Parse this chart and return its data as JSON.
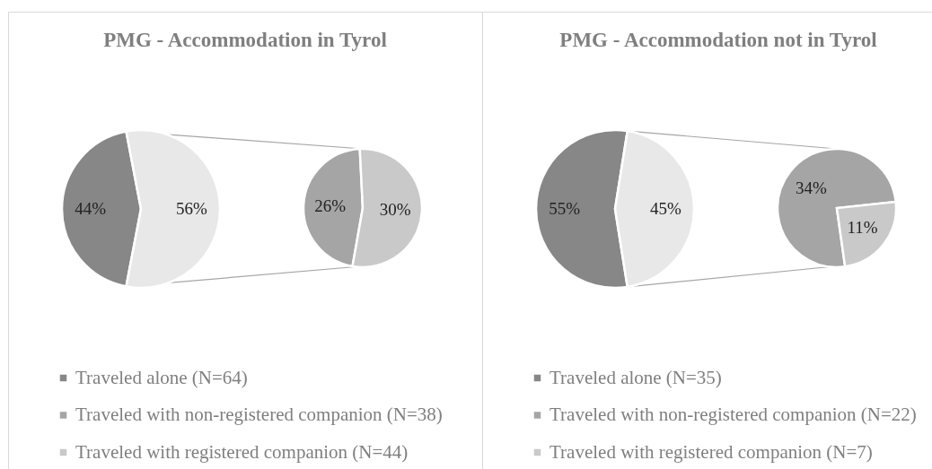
{
  "chart_data": [
    {
      "type": "pie",
      "title": "PMG - Accommodation in Tyrol",
      "categories": [
        "Traveled alone (N=64)",
        null,
        "Traveled with non-registered companion (N=38)",
        "Traveled with registered companion (N=44)"
      ],
      "colors": [
        "#878787",
        "#e8e8e8",
        "#a5a5a5",
        "#c9c9c9"
      ],
      "series": [
        {
          "values": [
            44,
            56,
            null,
            null
          ],
          "value_labels": [
            "44%",
            "56%",
            null,
            null
          ]
        },
        {
          "values": [
            null,
            null,
            26,
            30
          ],
          "value_labels": [
            null,
            null,
            "26%",
            "30%"
          ]
        }
      ],
      "legend": "bottom left"
    },
    {
      "type": "pie",
      "title": "PMG - Accommodation not in Tyrol",
      "categories": [
        "Traveled alone (N=35)",
        null,
        "Traveled with non-registered companion (N=22)",
        "Traveled with registered companion (N=7)"
      ],
      "colors": [
        "#878787",
        "#e8e8e8",
        "#a5a5a5",
        "#c9c9c9"
      ],
      "series": [
        {
          "values": [
            55,
            45,
            null,
            null
          ],
          "value_labels": [
            "55%",
            "45%",
            null,
            null
          ]
        },
        {
          "values": [
            null,
            null,
            34,
            11
          ],
          "value_labels": [
            null,
            null,
            "34%",
            "11%"
          ]
        }
      ],
      "legend": "bottom left"
    }
  ]
}
